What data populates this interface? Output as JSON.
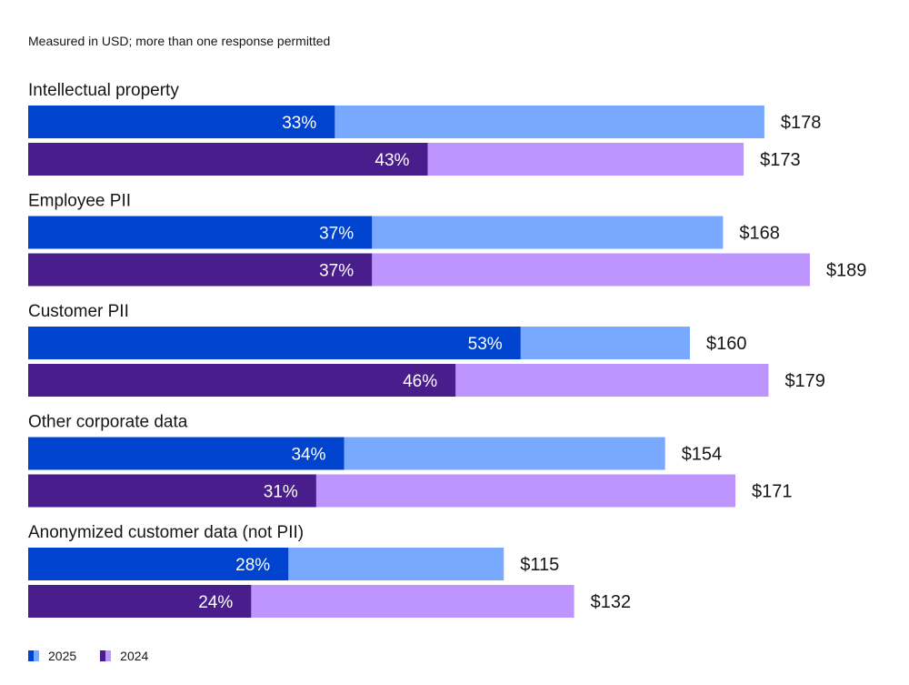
{
  "subtitle": "Measured in USD; more than one response permitted",
  "legend": [
    {
      "label": "2025",
      "dark": "#0043ce",
      "light": "#78a9ff"
    },
    {
      "label": "2024",
      "dark": "#491d8b",
      "light": "#be95ff"
    }
  ],
  "chart_data": {
    "type": "bar",
    "orientation": "horizontal",
    "subtitle": "Measured in USD; more than one response permitted",
    "categories": [
      "Intellectual property",
      "Employee PII",
      "Customer PII",
      "Other corporate data",
      "Anonymized customer data (not PII)"
    ],
    "series": [
      {
        "name": "2025",
        "dark_color": "#0043ce",
        "light_color": "#78a9ff",
        "percent": [
          33,
          37,
          53,
          34,
          28
        ],
        "percent_labels": [
          "33%",
          "37%",
          "53%",
          "34%",
          "28%"
        ],
        "value": [
          178,
          168,
          160,
          154,
          115
        ],
        "value_labels": [
          "$178",
          "$168",
          "$160",
          "$154",
          "$115"
        ]
      },
      {
        "name": "2024",
        "dark_color": "#491d8b",
        "light_color": "#be95ff",
        "percent": [
          43,
          37,
          46,
          31,
          24
        ],
        "percent_labels": [
          "43%",
          "37%",
          "46%",
          "31%",
          "24%"
        ],
        "value": [
          173,
          189,
          179,
          171,
          132
        ],
        "value_labels": [
          "$173",
          "$189",
          "$179",
          "$171",
          "$132"
        ]
      }
    ],
    "grid": false,
    "legend_position": "bottom-left"
  }
}
